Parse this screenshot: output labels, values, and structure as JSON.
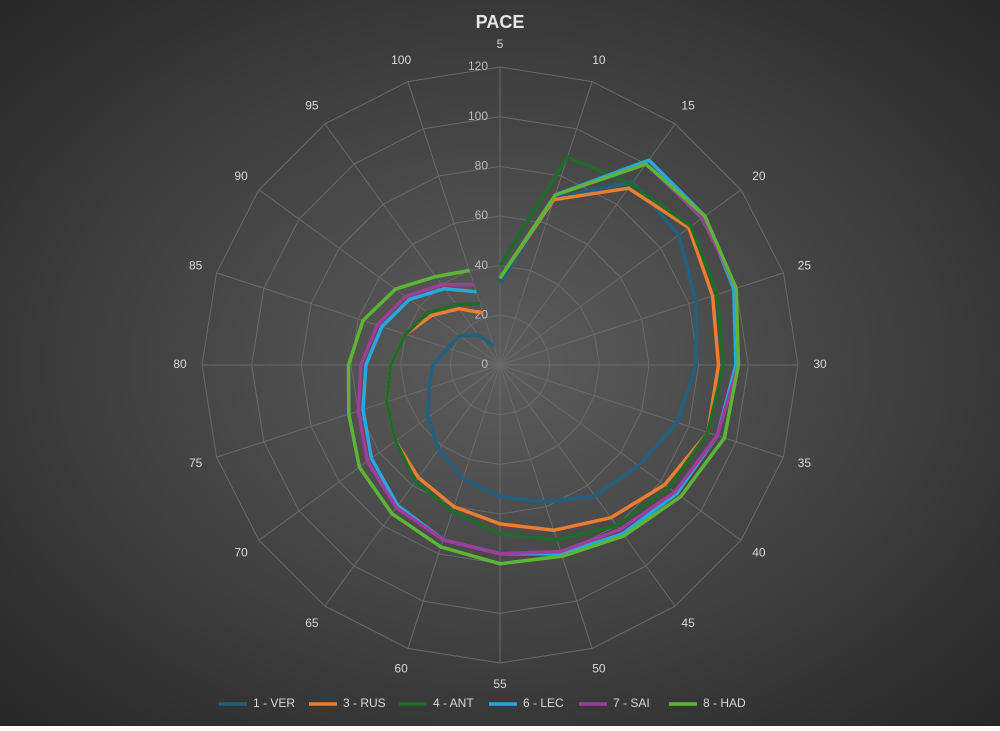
{
  "chart_data": {
    "type": "radar",
    "title": "PACE",
    "categories": [
      "5",
      "10",
      "15",
      "20",
      "25",
      "30",
      "35",
      "40",
      "45",
      "50",
      "55",
      "60",
      "65",
      "70",
      "75",
      "80",
      "85",
      "90",
      "95",
      "100"
    ],
    "rlim": [
      0,
      120
    ],
    "rticks": [
      0,
      20,
      40,
      60,
      80,
      100,
      120
    ],
    "grid": true,
    "legend": "bottom",
    "series": [
      {
        "name": "1 - VER",
        "color": "#21607e",
        "values": [
          33,
          71,
          91,
          89,
          83,
          79,
          75,
          69,
          65,
          58,
          53,
          48,
          42,
          36,
          30,
          27,
          22,
          20,
          15,
          8
        ]
      },
      {
        "name": "3 - RUS",
        "color": "#ed7d31",
        "values": [
          35,
          70,
          88,
          94,
          90,
          88,
          88,
          82,
          76,
          70,
          64,
          60,
          56,
          52,
          48,
          44,
          40,
          34,
          28,
          22
        ]
      },
      {
        "name": "4 - ANT",
        "color": "#1e6b2a",
        "values": [
          40,
          88,
          90,
          95,
          92,
          90,
          88,
          84,
          80,
          74,
          68,
          62,
          58,
          52,
          48,
          44,
          40,
          36,
          30,
          26
        ]
      },
      {
        "name": "6 - LEC",
        "color": "#29a8e0",
        "values": [
          35,
          72,
          102,
          102,
          99,
          95,
          92,
          88,
          84,
          80,
          76,
          74,
          70,
          64,
          58,
          54,
          50,
          45,
          38,
          31
        ]
      },
      {
        "name": "7 - SAI",
        "color": "#a03c9c",
        "values": [
          35,
          72,
          100,
          101,
          100,
          96,
          92,
          87,
          82,
          79,
          76,
          74,
          71,
          66,
          60,
          56,
          52,
          47,
          40,
          34
        ]
      },
      {
        "name": "8 - HAD",
        "color": "#5db536",
        "values": [
          35,
          72,
          100,
          102,
          100,
          96,
          95,
          90,
          85,
          81,
          80,
          77,
          74,
          70,
          64,
          61,
          58,
          52,
          44,
          40
        ]
      }
    ]
  }
}
